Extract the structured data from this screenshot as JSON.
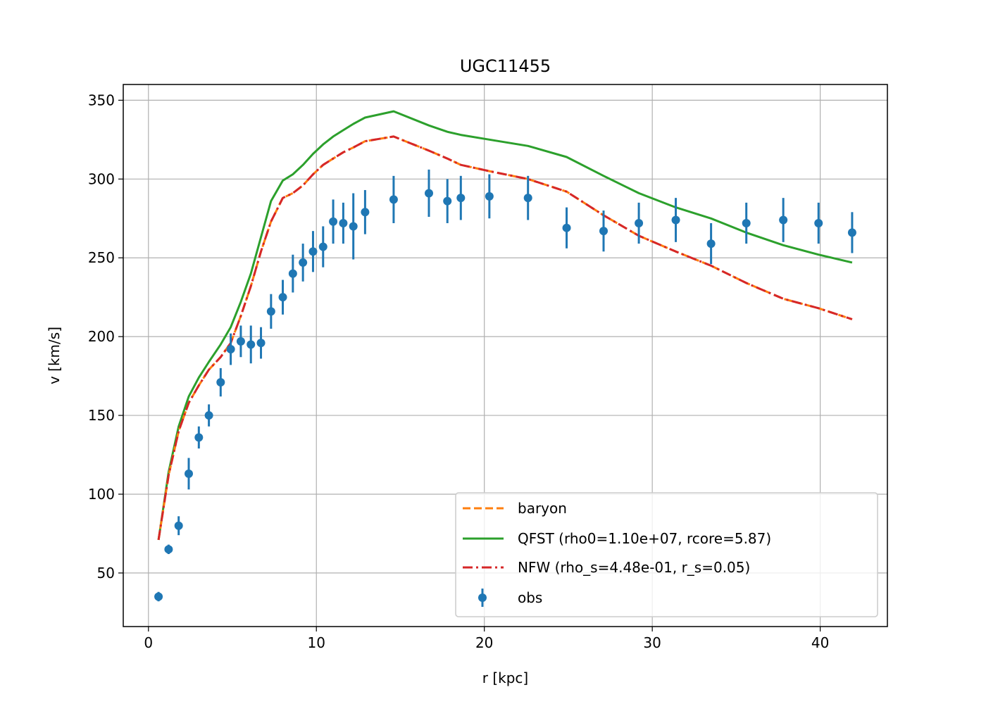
{
  "chart_data": {
    "type": "line",
    "title": "UGC11455",
    "xlabel": "r [kpc]",
    "ylabel": "v [km/s]",
    "xlim": [
      -1.5,
      44
    ],
    "ylim": [
      16,
      360
    ],
    "xticks": [
      0,
      10,
      20,
      30,
      40
    ],
    "yticks": [
      50,
      100,
      150,
      200,
      250,
      300,
      350
    ],
    "grid": true,
    "legend_position": "lower right",
    "colors": {
      "baryon": "#ff7f0e",
      "qfst": "#2ca02c",
      "nfw": "#d62728",
      "obs": "#1f77b4"
    },
    "series": [
      {
        "name": "baryon",
        "style": "dashed",
        "x": [
          0.6,
          1.2,
          1.8,
          2.4,
          3.0,
          3.6,
          4.3,
          4.9,
          5.5,
          6.1,
          6.7,
          7.3,
          8.0,
          8.6,
          9.2,
          9.8,
          10.4,
          11.0,
          11.6,
          12.2,
          12.9,
          14.6,
          16.7,
          17.8,
          18.6,
          20.3,
          22.6,
          24.9,
          27.1,
          29.2,
          31.4,
          33.5,
          35.6,
          37.8,
          39.9,
          41.9
        ],
        "y": [
          71,
          112,
          140,
          158,
          169,
          179,
          187,
          196,
          213,
          232,
          254,
          273,
          288,
          291,
          296,
          303,
          309,
          313,
          317,
          320,
          324,
          327,
          318,
          313,
          309,
          305,
          300,
          292,
          277,
          264,
          254,
          245,
          234,
          224,
          218,
          211
        ]
      },
      {
        "name": "QFST (rho0=1.10e+07, rcore=5.87)",
        "style": "solid",
        "x": [
          0.6,
          1.2,
          1.8,
          2.4,
          3.0,
          3.6,
          4.3,
          4.9,
          5.5,
          6.1,
          6.7,
          7.3,
          8.0,
          8.6,
          9.2,
          9.8,
          10.4,
          11.0,
          11.6,
          12.2,
          12.9,
          14.6,
          16.7,
          17.8,
          18.6,
          20.3,
          22.6,
          24.9,
          27.1,
          29.2,
          31.4,
          33.5,
          35.6,
          37.8,
          39.9,
          41.9
        ],
        "y": [
          71,
          114,
          143,
          162,
          174,
          184,
          195,
          206,
          222,
          240,
          263,
          286,
          299,
          303,
          309,
          316,
          322,
          327,
          331,
          335,
          339,
          343,
          334,
          330,
          328,
          325,
          321,
          314,
          302,
          291,
          282,
          275,
          266,
          258,
          252,
          247
        ]
      },
      {
        "name": "NFW (rho_s=4.48e-01, r_s=0.05)",
        "style": "dashdot",
        "x": [
          0.6,
          1.2,
          1.8,
          2.4,
          3.0,
          3.6,
          4.3,
          4.9,
          5.5,
          6.1,
          6.7,
          7.3,
          8.0,
          8.6,
          9.2,
          9.8,
          10.4,
          11.0,
          11.6,
          12.2,
          12.9,
          14.6,
          16.7,
          17.8,
          18.6,
          20.3,
          22.6,
          24.9,
          27.1,
          29.2,
          31.4,
          33.5,
          35.6,
          37.8,
          39.9,
          41.9
        ],
        "y": [
          71,
          112,
          140,
          158,
          169,
          179,
          187,
          196,
          213,
          232,
          254,
          273,
          288,
          291,
          296,
          303,
          309,
          313,
          317,
          320,
          324,
          327,
          318,
          313,
          309,
          305,
          300,
          292,
          277,
          264,
          254,
          245,
          234,
          224,
          218,
          211
        ]
      },
      {
        "name": "obs",
        "style": "errorbar",
        "x": [
          0.6,
          1.2,
          1.8,
          2.4,
          3.0,
          3.6,
          4.3,
          4.9,
          5.5,
          6.1,
          6.7,
          7.3,
          8.0,
          8.6,
          9.2,
          9.8,
          10.4,
          11.0,
          11.6,
          12.2,
          12.9,
          14.6,
          16.7,
          17.8,
          18.6,
          20.3,
          22.6,
          24.9,
          27.1,
          29.2,
          31.4,
          33.5,
          35.6,
          37.8,
          39.9,
          41.9
        ],
        "y": [
          35,
          65,
          80,
          113,
          136,
          150,
          171,
          192,
          197,
          195,
          196,
          216,
          225,
          240,
          247,
          254,
          257,
          273,
          272,
          270,
          279,
          287,
          291,
          286,
          288,
          289,
          288,
          269,
          267,
          272,
          274,
          259,
          272,
          274,
          272,
          266
        ],
        "yerr": [
          3,
          3,
          6,
          10,
          7,
          7,
          9,
          10,
          10,
          12,
          10,
          11,
          11,
          12,
          12,
          13,
          13,
          14,
          13,
          21,
          14,
          15,
          15,
          14,
          14,
          14,
          14,
          13,
          13,
          13,
          14,
          13,
          13,
          14,
          13,
          13
        ]
      }
    ]
  }
}
